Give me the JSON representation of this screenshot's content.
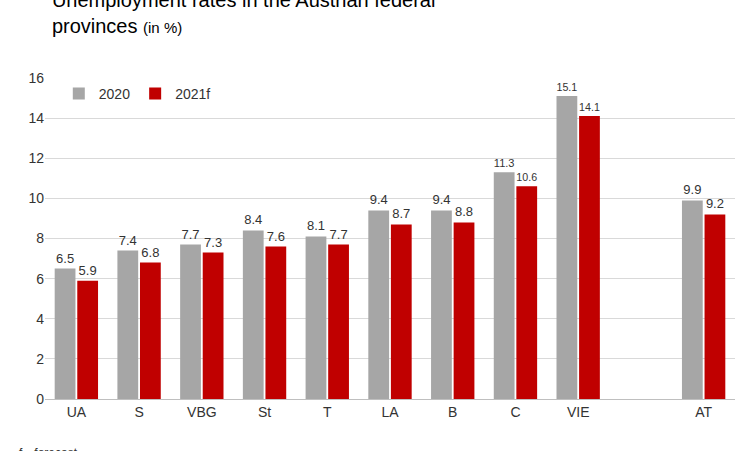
{
  "chart_data": {
    "type": "bar",
    "title": "Unemployment rates in the Austrian federal provinces",
    "subtitle": "(in %)",
    "categories": [
      "UA",
      "S",
      "VBG",
      "St",
      "T",
      "LA",
      "B",
      "C",
      "VIE",
      null,
      "AT"
    ],
    "series": [
      {
        "name": "2020",
        "color": "#a6a6a6",
        "values": [
          6.5,
          7.4,
          7.7,
          8.4,
          8.1,
          9.4,
          9.4,
          11.3,
          15.1,
          null,
          9.9
        ]
      },
      {
        "name": "2021f",
        "color": "#c00000",
        "values": [
          5.9,
          6.8,
          7.3,
          7.6,
          7.7,
          8.7,
          8.8,
          10.6,
          14.1,
          null,
          9.2
        ]
      }
    ],
    "ylim": [
      0,
      16
    ],
    "yticks": [
      0,
      2,
      4,
      6,
      8,
      10,
      12,
      14,
      16
    ],
    "grid": true,
    "legend": "upper left",
    "data_labels": true,
    "annotations": [
      "f…forecast"
    ]
  }
}
